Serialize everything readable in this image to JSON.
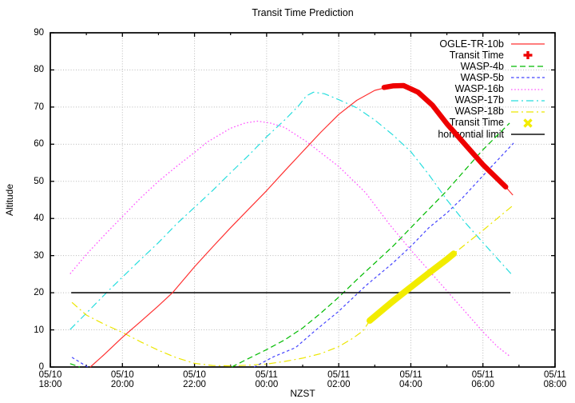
{
  "chart_data": {
    "type": "line",
    "title": "Transit Time Prediction",
    "xlabel": "NZST",
    "ylabel": "Altitude",
    "ylim": [
      0,
      90
    ],
    "xlim_hours": [
      0,
      14
    ],
    "x_start": "05/10 18:00",
    "x_end": "05/11 08:00",
    "grid": true,
    "legend_position": "top-right-inside",
    "y_ticks": [
      0,
      10,
      20,
      30,
      40,
      50,
      60,
      70,
      80,
      90
    ],
    "x_ticks": [
      {
        "h": 0,
        "date": "05/10",
        "time": "18:00"
      },
      {
        "h": 2,
        "date": "05/10",
        "time": "20:00"
      },
      {
        "h": 4,
        "date": "05/10",
        "time": "22:00"
      },
      {
        "h": 6,
        "date": "05/11",
        "time": "00:00"
      },
      {
        "h": 8,
        "date": "05/11",
        "time": "02:00"
      },
      {
        "h": 10,
        "date": "05/11",
        "time": "04:00"
      },
      {
        "h": 12,
        "date": "05/11",
        "time": "06:00"
      },
      {
        "h": 14,
        "date": "05/11",
        "time": "08:00"
      }
    ],
    "x_minor_ticks_h": [
      1,
      3,
      5,
      7,
      9,
      11,
      13
    ],
    "series": [
      {
        "name": "WASP-16b",
        "color": "#ff55ff",
        "style": "dot",
        "width": 1.3,
        "segments": [
          [
            [
              0.55,
              25.1
            ],
            [
              1,
              30.3
            ],
            [
              1.5,
              35.5
            ],
            [
              2,
              40.5
            ],
            [
              2.5,
              45.5
            ],
            [
              3,
              50
            ],
            [
              3.5,
              54
            ],
            [
              4,
              57.8
            ],
            [
              4.36,
              60.6
            ],
            [
              5,
              64.3
            ],
            [
              5.4,
              65.7
            ],
            [
              5.74,
              66.2
            ],
            [
              6.1,
              65.7
            ],
            [
              6.5,
              64.5
            ],
            [
              7.12,
              60.6
            ],
            [
              7.6,
              57
            ],
            [
              8,
              54
            ],
            [
              8.74,
              47
            ],
            [
              9.41,
              38.4
            ],
            [
              10,
              31.5
            ],
            [
              10.5,
              26
            ],
            [
              11,
              20.5
            ],
            [
              11.5,
              15
            ],
            [
              12,
              9.5
            ],
            [
              12.4,
              5.5
            ],
            [
              12.76,
              2.8
            ]
          ]
        ]
      },
      {
        "name": "WASP-17b",
        "color": "#26dede",
        "style": "dashdot",
        "width": 1.2,
        "segments": [
          [
            [
              0.55,
              10.1
            ],
            [
              1,
              14.5
            ],
            [
              1.64,
              20.8
            ],
            [
              2.37,
              27.7
            ],
            [
              3,
              33.5
            ],
            [
              3.5,
              38.5
            ],
            [
              4,
              43
            ],
            [
              4.5,
              47.5
            ],
            [
              5,
              52.3
            ],
            [
              5.5,
              57
            ],
            [
              6,
              62
            ],
            [
              6.5,
              66.5
            ],
            [
              6.9,
              70.5
            ],
            [
              7.1,
              73
            ],
            [
              7.3,
              74
            ],
            [
              7.6,
              73.6
            ],
            [
              8,
              72
            ],
            [
              8.5,
              69.8
            ],
            [
              9,
              66.5
            ],
            [
              9.5,
              62.5
            ],
            [
              10,
              58
            ],
            [
              10.5,
              51.8
            ],
            [
              11,
              45
            ],
            [
              11.5,
              39
            ],
            [
              12,
              33.5
            ],
            [
              12.78,
              25.1
            ]
          ]
        ]
      },
      {
        "name": "WASP-18b",
        "color": "#ece600",
        "style": "dashdot",
        "width": 1.2,
        "segments": [
          [
            [
              0.6,
              17.4
            ],
            [
              1,
              14
            ],
            [
              1.5,
              11.5
            ],
            [
              2,
              9.3
            ],
            [
              2.5,
              6.8
            ],
            [
              3,
              4.5
            ],
            [
              3.5,
              2.5
            ],
            [
              4,
              1
            ],
            [
              4.5,
              0.4
            ],
            [
              5,
              0.3
            ],
            [
              5.5,
              0.5
            ],
            [
              6,
              0.8
            ],
            [
              6.5,
              1.5
            ],
            [
              7,
              2.4
            ],
            [
              7.5,
              3.6
            ],
            [
              8,
              5.5
            ],
            [
              8.4,
              7.8
            ],
            [
              8.68,
              9.8
            ],
            [
              8.86,
              12.5
            ],
            [
              9.5,
              17.7
            ],
            [
              10,
              21.5
            ],
            [
              10.5,
              25.3
            ],
            [
              11,
              29
            ],
            [
              11.19,
              30.5
            ],
            [
              12,
              36.8
            ],
            [
              12.83,
              43.5
            ]
          ]
        ]
      },
      {
        "name": "WASP-4b",
        "color": "#00bb00",
        "style": "dash",
        "width": 1.2,
        "segments": [
          [
            [
              0.55,
              0.9
            ],
            [
              0.82,
              0
            ]
          ],
          [
            [
              5.03,
              0
            ],
            [
              5.5,
              2.3
            ],
            [
              6,
              4.7
            ],
            [
              6.5,
              7.3
            ],
            [
              7,
              10.5
            ],
            [
              7.5,
              14.5
            ],
            [
              8,
              18.8
            ],
            [
              8.5,
              23.5
            ],
            [
              9,
              28
            ],
            [
              9.5,
              32.5
            ],
            [
              10,
              37.5
            ],
            [
              10.5,
              42.5
            ],
            [
              11,
              47.5
            ],
            [
              11.5,
              53
            ],
            [
              12,
              58.5
            ],
            [
              12.74,
              65.7
            ]
          ]
        ]
      },
      {
        "name": "WASP-5b",
        "color": "#4444ff",
        "style": "dash-small",
        "width": 1.2,
        "segments": [
          [
            [
              0.6,
              2.6
            ],
            [
              1.04,
              0
            ]
          ],
          [
            [
              5.65,
              0
            ],
            [
              6.2,
              2.8
            ],
            [
              6.8,
              5.2
            ],
            [
              7.31,
              9.5
            ],
            [
              8,
              15
            ],
            [
              8.75,
              21.9
            ],
            [
              9.5,
              28
            ],
            [
              10,
              32.5
            ],
            [
              10.5,
              37.5
            ],
            [
              11,
              41.5
            ],
            [
              11.41,
              45.3
            ],
            [
              12,
              51.5
            ],
            [
              12.85,
              60.3
            ]
          ]
        ]
      },
      {
        "name": "horizontial limit",
        "color": "#111111",
        "style": "solid",
        "width": 1.6,
        "segments": [
          [
            [
              0.58,
              20
            ],
            [
              12.76,
              20
            ]
          ]
        ]
      },
      {
        "name": "OGLE-TR-10b",
        "color": "#ff3030",
        "style": "solid",
        "width": 1.2,
        "segments": [
          [
            [
              1.11,
              0
            ],
            [
              1.5,
              3.4
            ],
            [
              2,
              8
            ],
            [
              2.5,
              12.2
            ],
            [
              3,
              16.5
            ],
            [
              3.39,
              20
            ],
            [
              4,
              27
            ],
            [
              4.5,
              32.3
            ],
            [
              5,
              37.5
            ],
            [
              5.5,
              42.5
            ],
            [
              6,
              47.5
            ],
            [
              6.5,
              52.8
            ],
            [
              7,
              58
            ],
            [
              7.5,
              63.2
            ],
            [
              8,
              68
            ],
            [
              8.5,
              71.8
            ],
            [
              9,
              74.5
            ],
            [
              9.5,
              75.7
            ],
            [
              9.8,
              75.8
            ],
            [
              10.2,
              74
            ],
            [
              10.6,
              70.5
            ],
            [
              11,
              65.5
            ],
            [
              11.5,
              60
            ],
            [
              12,
              54.5
            ],
            [
              12.63,
              48.5
            ],
            [
              12.83,
              46.3
            ]
          ]
        ]
      },
      {
        "name": "Transit Time",
        "color": "#f2ec00",
        "style": "band",
        "width": 8,
        "segments": [
          [
            [
              8.86,
              12.5
            ],
            [
              9.5,
              17.7
            ],
            [
              10,
              21.5
            ],
            [
              10.5,
              25.3
            ],
            [
              11,
              29
            ],
            [
              11.19,
              30.5
            ]
          ]
        ]
      },
      {
        "name": "Transit Time",
        "color": "#ee0000",
        "style": "band",
        "width": 6.5,
        "segments": [
          [
            [
              9.26,
              75.3
            ],
            [
              9.5,
              75.7
            ],
            [
              9.8,
              75.8
            ],
            [
              10.2,
              74
            ],
            [
              10.6,
              70.5
            ],
            [
              11,
              65.5
            ],
            [
              11.5,
              60
            ],
            [
              12,
              54.5
            ],
            [
              12.63,
              48.5
            ]
          ]
        ]
      }
    ],
    "transit_windows": [
      {
        "target": "OGLE-TR-10b",
        "marker_color": "#ee0000",
        "start": "05/11 03:15",
        "end": "05/11 06:38",
        "alt_start": 75.3,
        "alt_end": 48.5
      },
      {
        "target": "WASP-18b",
        "marker_color": "#f2ec00",
        "start": "05/11 02:52",
        "end": "05/11 05:11",
        "alt_start": 12.5,
        "alt_end": 30.5
      }
    ]
  },
  "legend": {
    "entries": [
      {
        "label": "OGLE-TR-10b",
        "color": "#ff3030",
        "sample": "line",
        "style": "solid"
      },
      {
        "label": "Transit Time",
        "color": "#ee0000",
        "sample": "plus",
        "style": "solid"
      },
      {
        "label": "WASP-4b",
        "color": "#00bb00",
        "sample": "line",
        "style": "dash"
      },
      {
        "label": "WASP-5b",
        "color": "#4444ff",
        "sample": "line",
        "style": "dash-small"
      },
      {
        "label": "WASP-16b",
        "color": "#ff55ff",
        "sample": "line",
        "style": "dot"
      },
      {
        "label": "WASP-17b",
        "color": "#26dede",
        "sample": "line",
        "style": "dashdot"
      },
      {
        "label": "WASP-18b",
        "color": "#ece600",
        "sample": "line",
        "style": "dashdot"
      },
      {
        "label": "Transit Time",
        "color": "#f2ec00",
        "sample": "x",
        "style": "solid"
      },
      {
        "label": "horizontial limit",
        "color": "#111111",
        "sample": "line",
        "style": "solid"
      }
    ]
  },
  "colors": {
    "background": "#ffffff",
    "grid": "#b9b9b9",
    "border": "#000000"
  }
}
